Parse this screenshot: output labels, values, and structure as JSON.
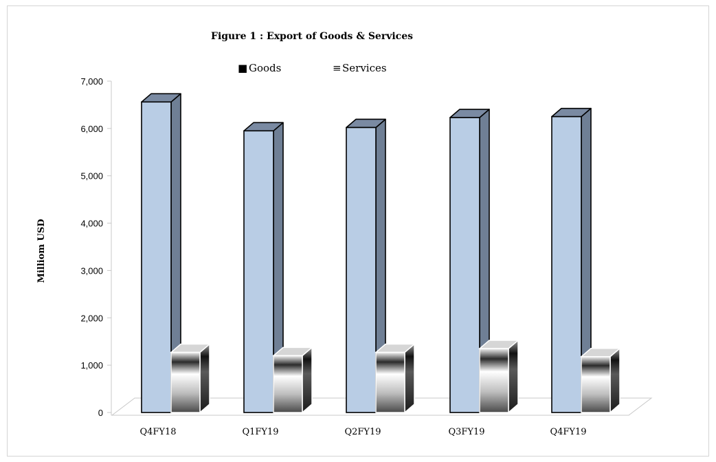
{
  "chart_data": {
    "type": "bar",
    "title": "Figure 1 : Export of Goods & Services",
    "ylabel": "Milliom USD",
    "xlabel": "",
    "categories": [
      "Q4FY18",
      "Q1FY19",
      "Q2FY19",
      "Q3FY19",
      "Q4FY19"
    ],
    "series": [
      {
        "name": "Goods",
        "values": [
          6560,
          5950,
          6020,
          6230,
          6250
        ],
        "color": "#b9cde5"
      },
      {
        "name": "Services",
        "values": [
          1270,
          1200,
          1270,
          1350,
          1180
        ],
        "color": "#8c8c8c"
      }
    ],
    "ylim": [
      0,
      7000
    ],
    "yticks": [
      "0",
      "1,000",
      "2,000",
      "3,000",
      "4,000",
      "5,000",
      "6,000",
      "7,000"
    ],
    "legend_position": "top",
    "grid": false,
    "three_d": true
  },
  "legend": {
    "goods_marker": "■",
    "services_marker": "≡"
  }
}
